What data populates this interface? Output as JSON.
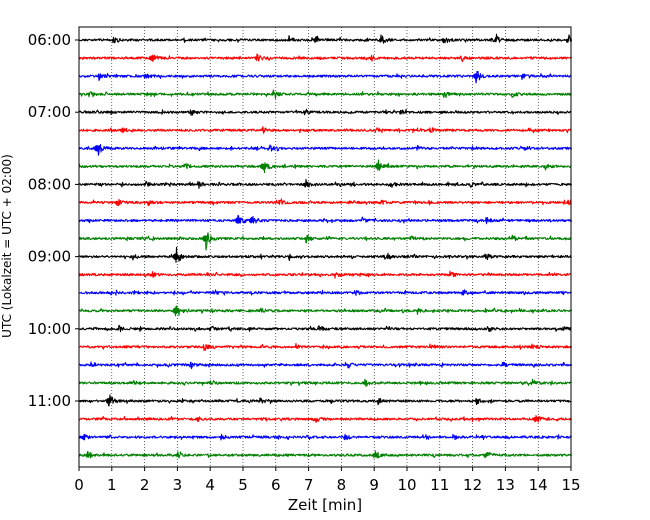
{
  "chart_data": {
    "type": "line",
    "title": "",
    "xlabel": "Zeit  [min]",
    "ylabel": "UTC (Lokalzeit = UTC + 02:00)",
    "xlim": [
      0,
      15
    ],
    "x_ticks": [
      0,
      1,
      2,
      3,
      4,
      5,
      6,
      7,
      8,
      9,
      10,
      11,
      12,
      13,
      14,
      15
    ],
    "x_tick_labels": [
      "0",
      "1",
      "2",
      "3",
      "4",
      "5",
      "6",
      "7",
      "8",
      "9",
      "10",
      "11",
      "12",
      "13",
      "14",
      "15"
    ],
    "y_tick_labels": [
      "06:00",
      "07:00",
      "08:00",
      "09:00",
      "10:00",
      "11:00"
    ],
    "y_tick_times": [
      "06:00",
      "07:00",
      "08:00",
      "09:00",
      "10:00",
      "11:00"
    ],
    "trace_interval_min": 15,
    "trace_colors": [
      "#000000",
      "#ff0000",
      "#0000ff",
      "#008000"
    ],
    "vertical_grid": "dotted",
    "series": [
      {
        "start": "06:00",
        "color": "#000000",
        "events": [
          {
            "t": 1.05,
            "a": 4
          },
          {
            "t": 6.4,
            "a": 4
          },
          {
            "t": 7.2,
            "a": 5
          },
          {
            "t": 9.2,
            "a": 5
          },
          {
            "t": 11.1,
            "a": 5
          },
          {
            "t": 12.7,
            "a": 4
          },
          {
            "t": 14.9,
            "a": 4
          }
        ]
      },
      {
        "start": "06:15",
        "color": "#ff0000",
        "events": [
          {
            "t": 2.2,
            "a": 7
          },
          {
            "t": 5.4,
            "a": 5
          },
          {
            "t": 8.9,
            "a": 3
          },
          {
            "t": 11.6,
            "a": 3
          }
        ]
      },
      {
        "start": "06:30",
        "color": "#0000ff",
        "events": [
          {
            "t": 0.6,
            "a": 3
          },
          {
            "t": 2.0,
            "a": 3
          },
          {
            "t": 12.1,
            "a": 8
          },
          {
            "t": 13.5,
            "a": 3
          }
        ]
      },
      {
        "start": "06:45",
        "color": "#008000",
        "events": [
          {
            "t": 0.3,
            "a": 4
          },
          {
            "t": 5.9,
            "a": 4
          },
          {
            "t": 11.1,
            "a": 3
          },
          {
            "t": 13.2,
            "a": 3
          }
        ]
      },
      {
        "start": "07:00",
        "color": "#000000",
        "events": [
          {
            "t": 3.4,
            "a": 3
          },
          {
            "t": 6.9,
            "a": 3
          },
          {
            "t": 9.8,
            "a": 3
          }
        ]
      },
      {
        "start": "07:15",
        "color": "#ff0000",
        "events": [
          {
            "t": 1.3,
            "a": 3
          },
          {
            "t": 5.6,
            "a": 3
          },
          {
            "t": 10.7,
            "a": 3
          }
        ]
      },
      {
        "start": "07:30",
        "color": "#0000ff",
        "events": [
          {
            "t": 0.55,
            "a": 9
          },
          {
            "t": 5.8,
            "a": 3
          },
          {
            "t": 10.3,
            "a": 3
          },
          {
            "t": 13.6,
            "a": 3
          }
        ]
      },
      {
        "start": "07:45",
        "color": "#008000",
        "events": [
          {
            "t": 5.6,
            "a": 8
          },
          {
            "t": 9.1,
            "a": 7
          },
          {
            "t": 3.2,
            "a": 3
          },
          {
            "t": 14.2,
            "a": 3
          }
        ]
      },
      {
        "start": "08:00",
        "color": "#000000",
        "events": [
          {
            "t": 2.0,
            "a": 4
          },
          {
            "t": 3.6,
            "a": 3
          },
          {
            "t": 6.9,
            "a": 5
          },
          {
            "t": 9.5,
            "a": 3
          },
          {
            "t": 11.9,
            "a": 3
          }
        ]
      },
      {
        "start": "08:15",
        "color": "#ff0000",
        "events": [
          {
            "t": 1.15,
            "a": 5
          },
          {
            "t": 2.1,
            "a": 3
          },
          {
            "t": 6.1,
            "a": 3
          },
          {
            "t": 9.2,
            "a": 3
          },
          {
            "t": 14.9,
            "a": 4
          }
        ]
      },
      {
        "start": "08:30",
        "color": "#0000ff",
        "events": [
          {
            "t": 4.85,
            "a": 9
          },
          {
            "t": 5.25,
            "a": 7
          },
          {
            "t": 8.6,
            "a": 3
          },
          {
            "t": 12.4,
            "a": 3
          }
        ]
      },
      {
        "start": "08:45",
        "color": "#008000",
        "events": [
          {
            "t": 3.85,
            "a": 12
          },
          {
            "t": 6.9,
            "a": 4
          },
          {
            "t": 10.1,
            "a": 3
          },
          {
            "t": 13.2,
            "a": 3
          }
        ]
      },
      {
        "start": "09:00",
        "color": "#000000",
        "events": [
          {
            "t": 2.95,
            "a": 10
          },
          {
            "t": 1.6,
            "a": 4
          },
          {
            "t": 6.4,
            "a": 3
          },
          {
            "t": 9.3,
            "a": 3
          },
          {
            "t": 12.4,
            "a": 3
          }
        ]
      },
      {
        "start": "09:15",
        "color": "#ff0000",
        "events": [
          {
            "t": 2.2,
            "a": 3
          },
          {
            "t": 7.8,
            "a": 3
          },
          {
            "t": 11.3,
            "a": 3
          }
        ]
      },
      {
        "start": "09:30",
        "color": "#0000ff",
        "events": [
          {
            "t": 4.1,
            "a": 3
          },
          {
            "t": 8.4,
            "a": 3
          },
          {
            "t": 11.7,
            "a": 3
          }
        ]
      },
      {
        "start": "09:45",
        "color": "#008000",
        "events": [
          {
            "t": 2.95,
            "a": 11
          },
          {
            "t": 5.5,
            "a": 3
          },
          {
            "t": 10.3,
            "a": 3
          }
        ]
      },
      {
        "start": "10:00",
        "color": "#000000",
        "events": [
          {
            "t": 1.2,
            "a": 3
          },
          {
            "t": 4.0,
            "a": 3
          },
          {
            "t": 7.3,
            "a": 3
          },
          {
            "t": 12.5,
            "a": 3
          },
          {
            "t": 14.7,
            "a": 3
          }
        ]
      },
      {
        "start": "10:15",
        "color": "#ff0000",
        "events": [
          {
            "t": 3.8,
            "a": 3
          },
          {
            "t": 6.6,
            "a": 3
          },
          {
            "t": 10.7,
            "a": 3
          },
          {
            "t": 13.8,
            "a": 3
          }
        ]
      },
      {
        "start": "10:30",
        "color": "#0000ff",
        "events": [
          {
            "t": 0.35,
            "a": 3
          },
          {
            "t": 3.4,
            "a": 3
          },
          {
            "t": 8.2,
            "a": 3
          },
          {
            "t": 12.9,
            "a": 3
          }
        ]
      },
      {
        "start": "10:45",
        "color": "#008000",
        "events": [
          {
            "t": 1.6,
            "a": 3
          },
          {
            "t": 4.0,
            "a": 3
          },
          {
            "t": 8.7,
            "a": 4
          },
          {
            "t": 13.8,
            "a": 3
          }
        ]
      },
      {
        "start": "11:00",
        "color": "#000000",
        "events": [
          {
            "t": 0.9,
            "a": 8
          },
          {
            "t": 5.5,
            "a": 3
          },
          {
            "t": 9.1,
            "a": 3
          },
          {
            "t": 12.1,
            "a": 3
          }
        ]
      },
      {
        "start": "11:15",
        "color": "#ff0000",
        "events": [
          {
            "t": 3.6,
            "a": 3
          },
          {
            "t": 7.2,
            "a": 3
          },
          {
            "t": 13.9,
            "a": 6
          }
        ]
      },
      {
        "start": "11:30",
        "color": "#0000ff",
        "events": [
          {
            "t": 0.1,
            "a": 4
          },
          {
            "t": 4.3,
            "a": 3
          },
          {
            "t": 8.1,
            "a": 3
          },
          {
            "t": 11.4,
            "a": 3
          }
        ]
      },
      {
        "start": "11:45",
        "color": "#008000",
        "events": [
          {
            "t": 0.25,
            "a": 5
          },
          {
            "t": 3.0,
            "a": 3
          },
          {
            "t": 9.0,
            "a": 4
          },
          {
            "t": 12.4,
            "a": 5
          }
        ]
      }
    ]
  }
}
